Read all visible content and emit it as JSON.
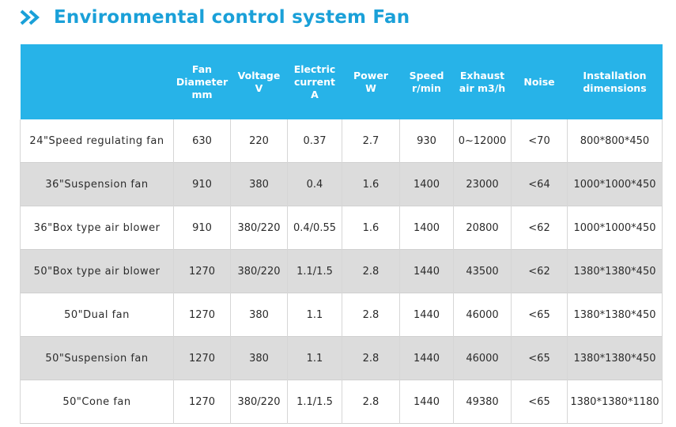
{
  "title": "Environmental control system Fan",
  "colors": {
    "accent": "#27b3e8",
    "title": "#1aa0d8",
    "stripe": "#dcdcdc"
  },
  "icons": {
    "title_icon": "double-chevron-right-icon"
  },
  "table": {
    "headers": [
      [
        ""
      ],
      [
        "Fan",
        "Diameter",
        "mm"
      ],
      [
        "Voltage",
        "V"
      ],
      [
        "Electric",
        "current",
        "A"
      ],
      [
        "Power",
        "W"
      ],
      [
        "Speed",
        "r/min"
      ],
      [
        "Exhaust",
        "air m3/h"
      ],
      [
        "Noise"
      ],
      [
        "Installation",
        "dimensions"
      ]
    ],
    "rows": [
      [
        "24\"Speed regulating fan",
        "630",
        "220",
        "0.37",
        "2.7",
        "930",
        "0~12000",
        "<70",
        "800*800*450"
      ],
      [
        "36\"Suspension fan",
        "910",
        "380",
        "0.4",
        "1.6",
        "1400",
        "23000",
        "<64",
        "1000*1000*450"
      ],
      [
        "36\"Box type air blower",
        "910",
        "380/220",
        "0.4/0.55",
        "1.6",
        "1400",
        "20800",
        "<62",
        "1000*1000*450"
      ],
      [
        "50\"Box type air blower",
        "1270",
        "380/220",
        "1.1/1.5",
        "2.8",
        "1440",
        "43500",
        "<62",
        "1380*1380*450"
      ],
      [
        "50\"Dual fan",
        "1270",
        "380",
        "1.1",
        "2.8",
        "1440",
        "46000",
        "<65",
        "1380*1380*450"
      ],
      [
        "50\"Suspension fan",
        "1270",
        "380",
        "1.1",
        "2.8",
        "1440",
        "46000",
        "<65",
        "1380*1380*450"
      ],
      [
        "50\"Cone fan",
        "1270",
        "380/220",
        "1.1/1.5",
        "2.8",
        "1440",
        "49380",
        "<65",
        "1380*1380*1180"
      ]
    ]
  }
}
